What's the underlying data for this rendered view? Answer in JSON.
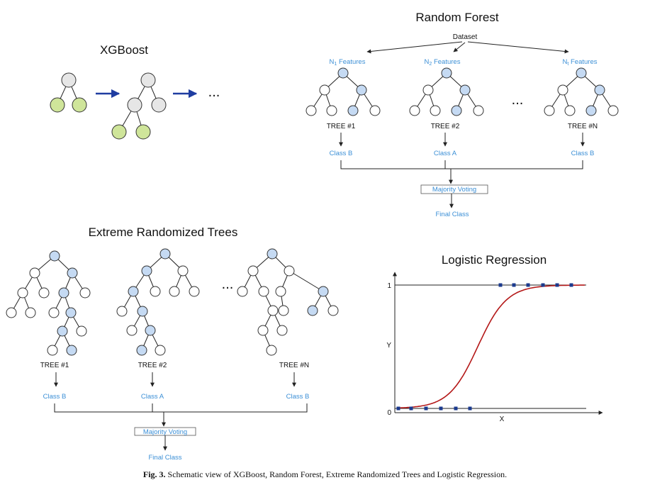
{
  "colors": {
    "node": "#ffffff",
    "node_gray": "#e6e6e6",
    "node_green": "#cfe59a",
    "node_blue": "#c5daf3",
    "arrow_blue": "#1f3da1",
    "text_blue": "#3b8fd6",
    "curve_red": "#b41818",
    "marker": "#1b3a8e"
  },
  "xgboost": {
    "title": "XGBoost",
    "ellipsis": "..."
  },
  "random_forest": {
    "title": "Random Forest",
    "dataset": "Dataset",
    "features": [
      {
        "main": "N",
        "sub": "1",
        "rest": " Features"
      },
      {
        "main": "N",
        "sub": "2",
        "rest": " Features"
      },
      {
        "main": "N",
        "sub": "t",
        "rest": " Features"
      }
    ],
    "trees": [
      "TREE #1",
      "TREE #2",
      "TREE #N"
    ],
    "classes": [
      "Class B",
      "Class A",
      "Class B"
    ],
    "ellipsis": "...",
    "voting": "Majority Voting",
    "final": "Final Class"
  },
  "extra_trees": {
    "title": "Extreme Randomized Trees",
    "trees": [
      "TREE #1",
      "TREE #2",
      "TREE #N"
    ],
    "classes": [
      "Class B",
      "Class A",
      "Class B"
    ],
    "ellipsis": "...",
    "voting": "Majority Voting",
    "final": "Final Class"
  },
  "logistic": {
    "title": "Logistic Regression",
    "ylabel": "Y",
    "xlabel": "X",
    "y_ticks": [
      "1",
      "0"
    ]
  },
  "caption": {
    "label": "Fig. 3.",
    "text": "Schematic view of XGBoost, Random Forest, Extreme Randomized Trees and Logistic Regression."
  }
}
